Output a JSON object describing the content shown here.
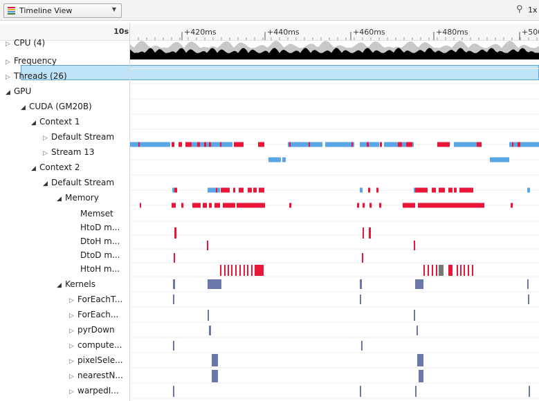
{
  "toolbar": {
    "view_label": "Timeline View",
    "zoom_level": "1x",
    "icon": "timeline-icon",
    "zoom_icon": "zoom-icon"
  },
  "ruler": {
    "start_label": "10s",
    "ticks": [
      "+420ms",
      "+440ms",
      "+460ms",
      "+480ms",
      "+500ms"
    ]
  },
  "colors": {
    "memory": "#e8173a",
    "kernel": "#5ba6e6",
    "kernel_dark": "#6a78a8",
    "cpu": "#000000",
    "selection": "#bfe3f7"
  },
  "rows": [
    {
      "label": "CPU (4)",
      "indent": 0,
      "arrow": "collapsed"
    },
    {
      "label": "Frequency",
      "indent": 0,
      "arrow": "collapsed"
    },
    {
      "label": "Threads (26)",
      "indent": 0,
      "arrow": "collapsed"
    },
    {
      "label": "GPU",
      "indent": 0,
      "arrow": "expanded"
    },
    {
      "label": "CUDA (GM20B)",
      "indent": 1,
      "arrow": "expanded"
    },
    {
      "label": "Context 1",
      "indent": 2,
      "arrow": "expanded"
    },
    {
      "label": "Default Stream",
      "indent": 3,
      "arrow": "collapsed"
    },
    {
      "label": "Stream 13",
      "indent": 3,
      "arrow": "collapsed"
    },
    {
      "label": "Context 2",
      "indent": 2,
      "arrow": "expanded"
    },
    {
      "label": "Default Stream",
      "indent": 3,
      "arrow": "expanded"
    },
    {
      "label": "Memory",
      "indent": 4,
      "arrow": "expanded"
    },
    {
      "label": "Memset",
      "indent": 5,
      "arrow": "none"
    },
    {
      "label": "HtoD m...",
      "indent": 5,
      "arrow": "none"
    },
    {
      "label": "DtoH m...",
      "indent": 5,
      "arrow": "none"
    },
    {
      "label": "DtoD m...",
      "indent": 5,
      "arrow": "none"
    },
    {
      "label": "HtoH m...",
      "indent": 5,
      "arrow": "none"
    },
    {
      "label": "Kernels",
      "indent": 4,
      "arrow": "expanded"
    },
    {
      "label": "ForEachT...",
      "indent": 5,
      "arrow": "collapsed"
    },
    {
      "label": "ForEach...",
      "indent": 5,
      "arrow": "collapsed"
    },
    {
      "label": "pyrDown",
      "indent": 5,
      "arrow": "collapsed"
    },
    {
      "label": "compute...",
      "indent": 5,
      "arrow": "collapsed"
    },
    {
      "label": "pixelSele...",
      "indent": 5,
      "arrow": "collapsed"
    },
    {
      "label": "nearestN...",
      "indent": 5,
      "arrow": "collapsed"
    },
    {
      "label": "warpedI...",
      "indent": 5,
      "arrow": "collapsed"
    }
  ]
}
